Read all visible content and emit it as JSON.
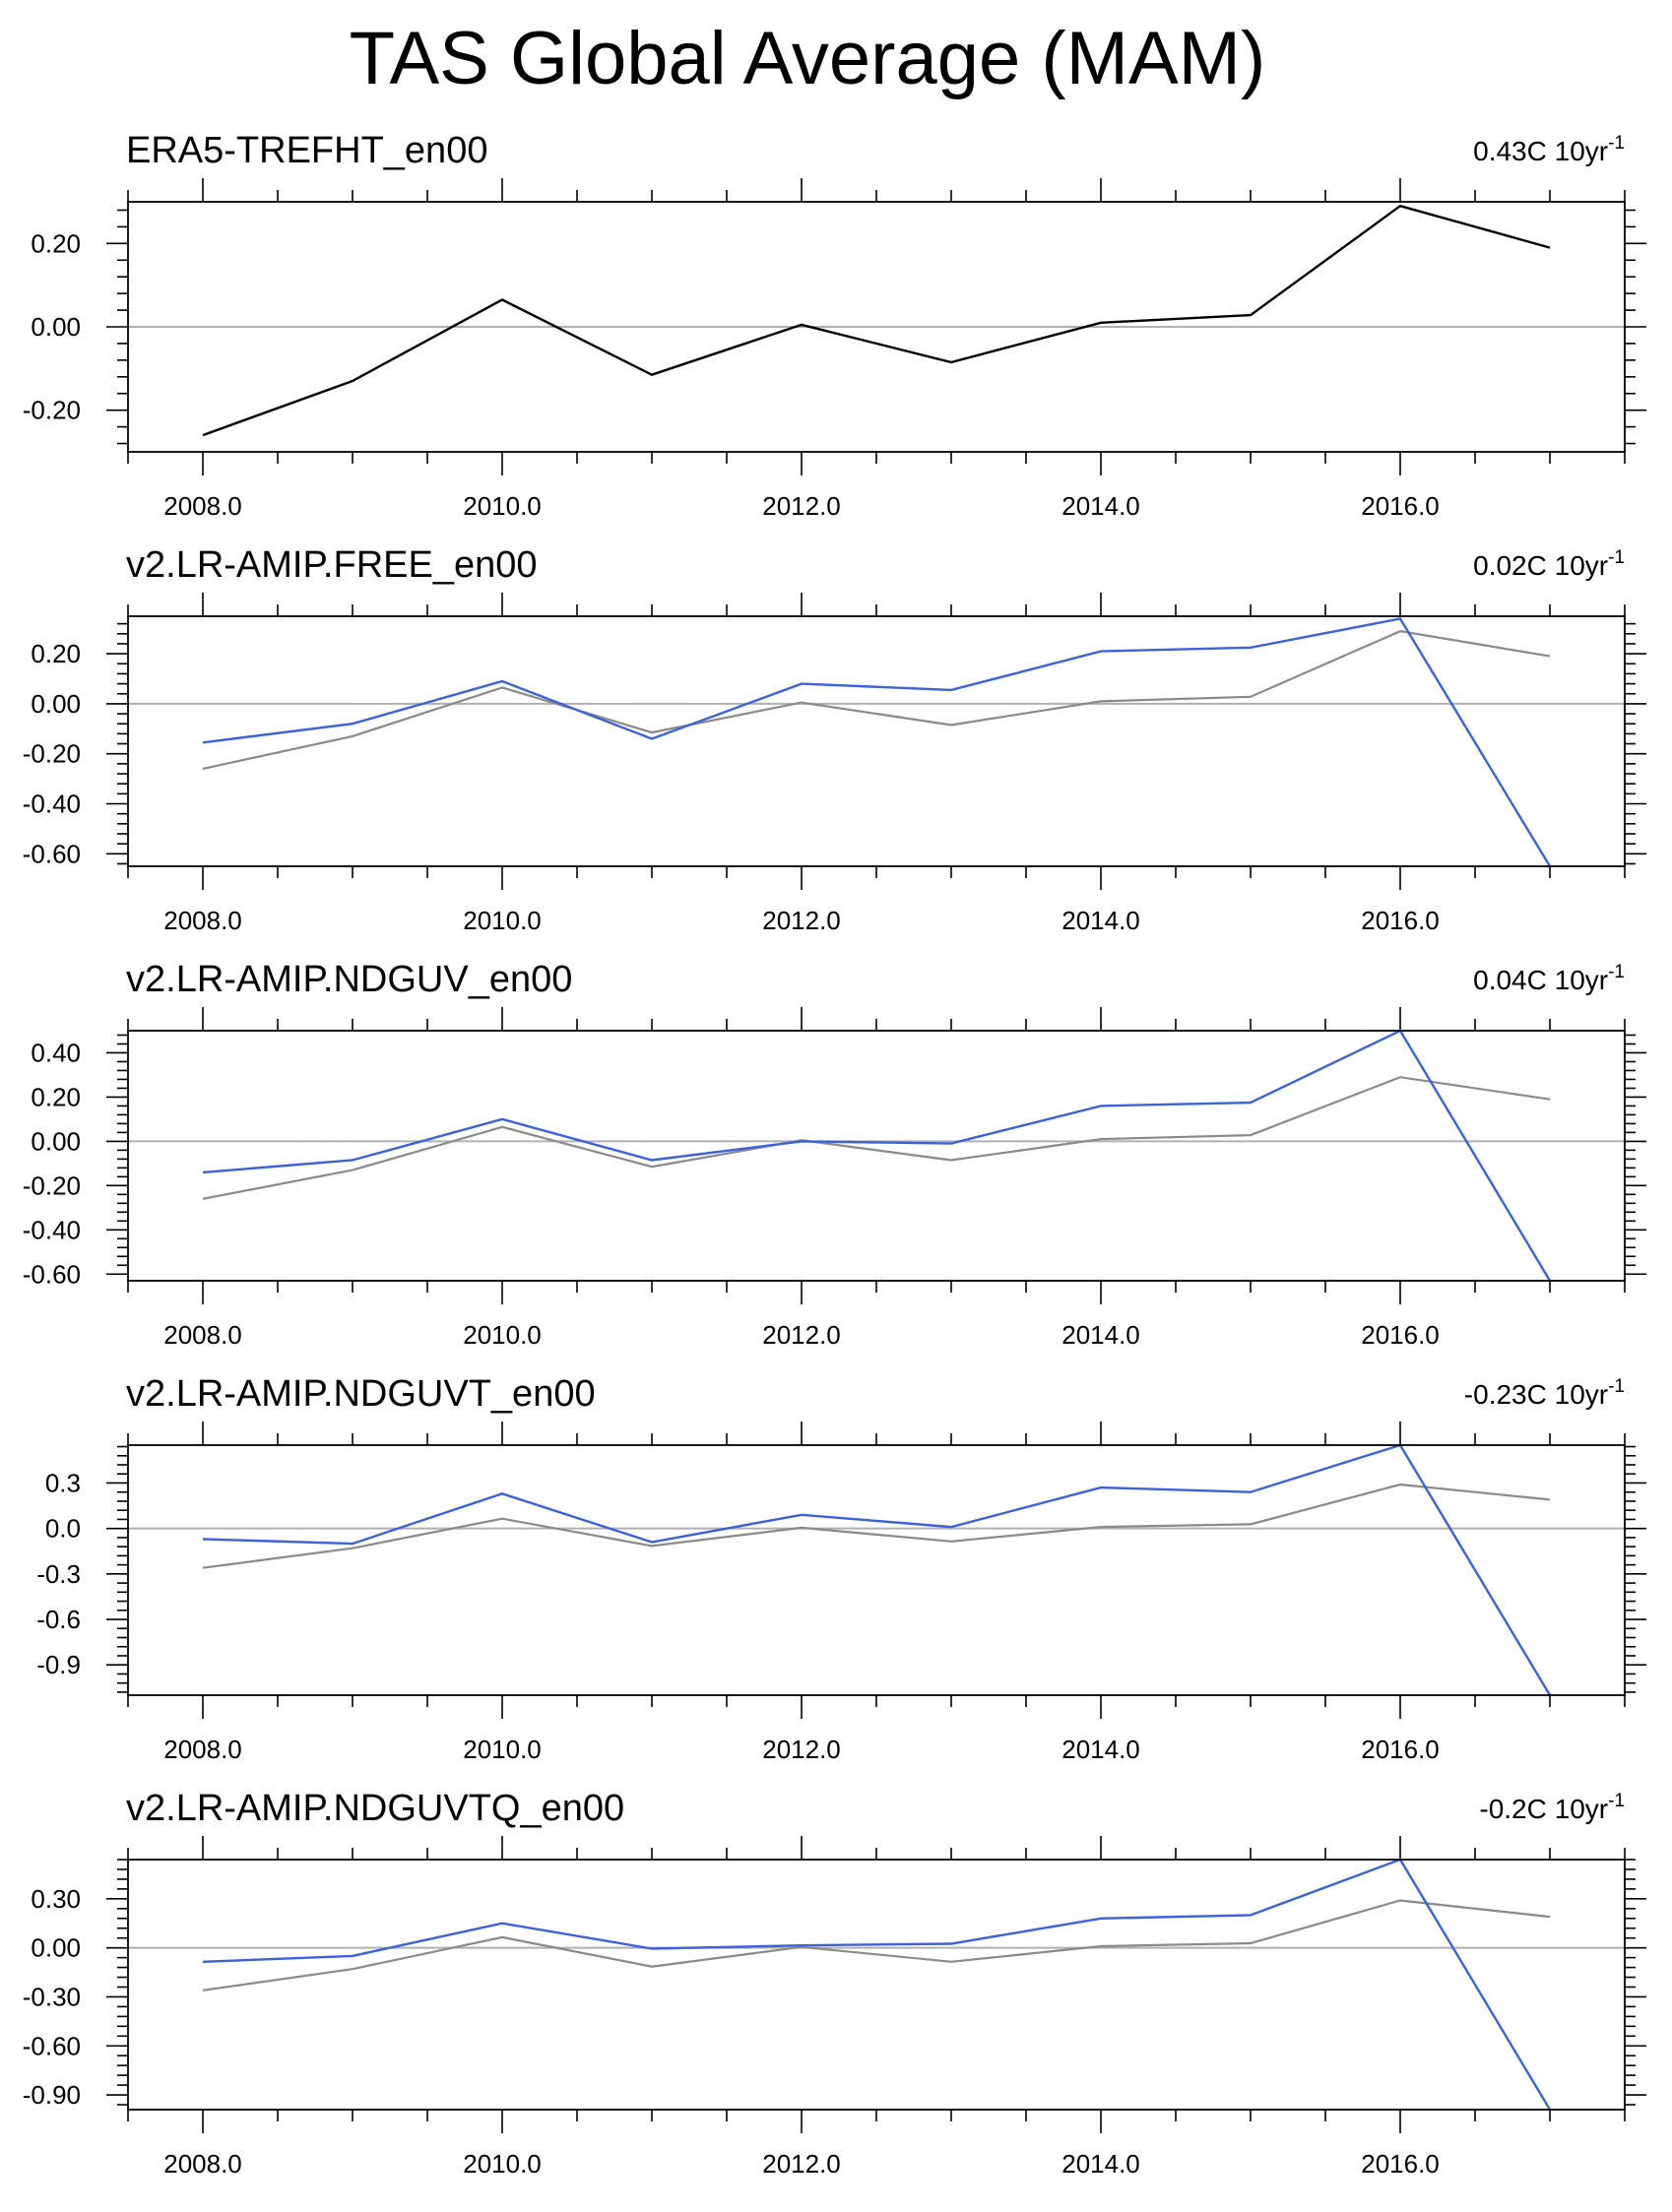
{
  "title": "TAS Global Average (MAM)",
  "colors": {
    "model": "#3a62d9",
    "obs_overlay": "#8a8a8a",
    "obs": "#000000",
    "zero_line": "#b0b0b0",
    "axis": "#000000"
  },
  "chart_data": [
    {
      "type": "line",
      "title": "ERA5-TREFHT_en00",
      "trend_value": "0.43C 10yr",
      "trend_exponent": "-1",
      "xlim": [
        2007.5,
        2017.5
      ],
      "ylim": [
        -0.3,
        0.3
      ],
      "yticks": [
        -0.2,
        0.0,
        0.2
      ],
      "ytick_labels": [
        "-0.20",
        "0.00",
        "0.20"
      ],
      "xticks": [
        2008,
        2010,
        2012,
        2014,
        2016
      ],
      "xtick_labels": [
        "2008.0",
        "2010.0",
        "2012.0",
        "2014.0",
        "2016.0"
      ],
      "x": [
        2008,
        2009,
        2010,
        2011,
        2012,
        2013,
        2014,
        2015,
        2016,
        2017
      ],
      "series": [
        {
          "name": "ERA5-TREFHT_en00",
          "role": "obs",
          "values": [
            -0.26,
            -0.13,
            0.065,
            -0.115,
            0.005,
            -0.085,
            0.01,
            0.028,
            0.29,
            0.19
          ]
        }
      ]
    },
    {
      "type": "line",
      "title": "v2.LR-AMIP.FREE_en00",
      "trend_value": "0.02C 10yr",
      "trend_exponent": "-1",
      "xlim": [
        2007.5,
        2017.5
      ],
      "ylim": [
        -0.65,
        0.35
      ],
      "yticks": [
        -0.6,
        -0.4,
        -0.2,
        0.0,
        0.2
      ],
      "ytick_labels": [
        "-0.60",
        "-0.40",
        "-0.20",
        "0.00",
        "0.20"
      ],
      "xticks": [
        2008,
        2010,
        2012,
        2014,
        2016
      ],
      "xtick_labels": [
        "2008.0",
        "2010.0",
        "2012.0",
        "2014.0",
        "2016.0"
      ],
      "x": [
        2008,
        2009,
        2010,
        2011,
        2012,
        2013,
        2014,
        2015,
        2016,
        2017
      ],
      "series": [
        {
          "name": "ERA5-TREFHT_en00",
          "role": "obs_overlay",
          "values": [
            -0.26,
            -0.13,
            0.065,
            -0.115,
            0.005,
            -0.085,
            0.01,
            0.028,
            0.29,
            0.19
          ]
        },
        {
          "name": "v2.LR-AMIP.FREE_en00",
          "role": "model",
          "values": [
            -0.155,
            -0.08,
            0.09,
            -0.14,
            0.08,
            0.055,
            0.21,
            0.225,
            0.34,
            -0.65
          ]
        }
      ]
    },
    {
      "type": "line",
      "title": "v2.LR-AMIP.NDGUV_en00",
      "trend_value": "0.04C 10yr",
      "trend_exponent": "-1",
      "xlim": [
        2007.5,
        2017.5
      ],
      "ylim": [
        -0.63,
        0.5
      ],
      "yticks": [
        -0.6,
        -0.4,
        -0.2,
        0.0,
        0.2,
        0.4
      ],
      "ytick_labels": [
        "-0.60",
        "-0.40",
        "-0.20",
        "0.00",
        "0.20",
        "0.40"
      ],
      "xticks": [
        2008,
        2010,
        2012,
        2014,
        2016
      ],
      "xtick_labels": [
        "2008.0",
        "2010.0",
        "2012.0",
        "2014.0",
        "2016.0"
      ],
      "x": [
        2008,
        2009,
        2010,
        2011,
        2012,
        2013,
        2014,
        2015,
        2016,
        2017
      ],
      "series": [
        {
          "name": "ERA5-TREFHT_en00",
          "role": "obs_overlay",
          "values": [
            -0.26,
            -0.13,
            0.065,
            -0.115,
            0.005,
            -0.085,
            0.01,
            0.028,
            0.29,
            0.19
          ]
        },
        {
          "name": "v2.LR-AMIP.NDGUV_en00",
          "role": "model",
          "values": [
            -0.14,
            -0.085,
            0.1,
            -0.085,
            0.0,
            -0.01,
            0.16,
            0.175,
            0.5,
            -0.63
          ]
        }
      ]
    },
    {
      "type": "line",
      "title": "v2.LR-AMIP.NDGUVT_en00",
      "trend_value": "-0.23C 10yr",
      "trend_exponent": "-1",
      "xlim": [
        2007.5,
        2017.5
      ],
      "ylim": [
        -1.1,
        0.55
      ],
      "yticks": [
        -0.9,
        -0.6,
        -0.3,
        0.0,
        0.3
      ],
      "ytick_labels": [
        "-0.9",
        "-0.6",
        "-0.3",
        "0.0",
        "0.3"
      ],
      "xticks": [
        2008,
        2010,
        2012,
        2014,
        2016
      ],
      "xtick_labels": [
        "2008.0",
        "2010.0",
        "2012.0",
        "2014.0",
        "2016.0"
      ],
      "x": [
        2008,
        2009,
        2010,
        2011,
        2012,
        2013,
        2014,
        2015,
        2016,
        2017
      ],
      "series": [
        {
          "name": "ERA5-TREFHT_en00",
          "role": "obs_overlay",
          "values": [
            -0.26,
            -0.13,
            0.065,
            -0.115,
            0.005,
            -0.085,
            0.01,
            0.028,
            0.29,
            0.19
          ]
        },
        {
          "name": "v2.LR-AMIP.NDGUVT_en00",
          "role": "model",
          "values": [
            -0.07,
            -0.1,
            0.23,
            -0.09,
            0.09,
            0.01,
            0.27,
            0.24,
            0.55,
            -1.1
          ]
        }
      ]
    },
    {
      "type": "line",
      "title": "v2.LR-AMIP.NDGUVTQ_en00",
      "trend_value": "-0.2C 10yr",
      "trend_exponent": "-1",
      "xlim": [
        2007.5,
        2017.5
      ],
      "ylim": [
        -0.99,
        0.54
      ],
      "yticks": [
        -0.9,
        -0.6,
        -0.3,
        0.0,
        0.3
      ],
      "ytick_labels": [
        "-0.90",
        "-0.60",
        "-0.30",
        "0.00",
        "0.30"
      ],
      "xticks": [
        2008,
        2010,
        2012,
        2014,
        2016
      ],
      "xtick_labels": [
        "2008.0",
        "2010.0",
        "2012.0",
        "2014.0",
        "2016.0"
      ],
      "x": [
        2008,
        2009,
        2010,
        2011,
        2012,
        2013,
        2014,
        2015,
        2016,
        2017
      ],
      "series": [
        {
          "name": "ERA5-TREFHT_en00",
          "role": "obs_overlay",
          "values": [
            -0.26,
            -0.13,
            0.065,
            -0.115,
            0.005,
            -0.085,
            0.01,
            0.028,
            0.29,
            0.19
          ]
        },
        {
          "name": "v2.LR-AMIP.NDGUVTQ_en00",
          "role": "model",
          "values": [
            -0.085,
            -0.05,
            0.15,
            -0.005,
            0.015,
            0.025,
            0.18,
            0.2,
            0.54,
            -0.99
          ]
        }
      ]
    }
  ]
}
